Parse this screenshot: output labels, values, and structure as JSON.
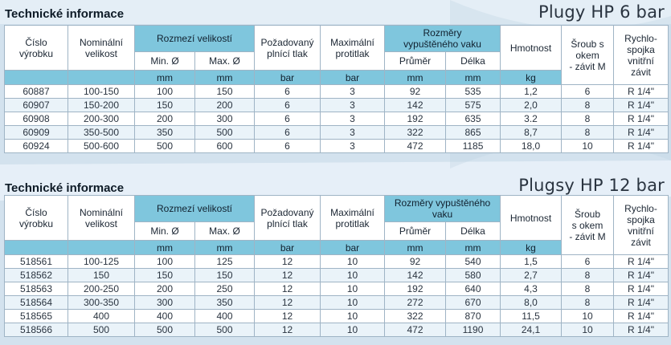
{
  "tables": [
    {
      "section_title": "Technické informace",
      "product_title": "Plugy HP 6 bar",
      "headers": {
        "cislo": "Číslo\nvýrobku",
        "nominal": "Nominální\nvelikost",
        "rozmezi": "Rozmezí velikostí",
        "min": "Min. Ø",
        "max": "Max. Ø",
        "pozadovany": "Požadovaný\nplnící tlak",
        "maximalni": "Maximální\nprotitlak",
        "rozmery": "Rozměry\nvypuštěného vaku",
        "prumer": "Průměr",
        "delka": "Délka",
        "hmotnost": "Hmotnost",
        "sroub": "Šroub s\nokem\n- závit M",
        "rychlo": "Rychlo-\nspojka\nvnitřní\nzávit"
      },
      "units": [
        "mm",
        "mm",
        "bar",
        "bar",
        "mm",
        "mm",
        "kg"
      ],
      "rows": [
        [
          "60887",
          "100-150",
          "100",
          "150",
          "6",
          "3",
          "92",
          "535",
          "1,2",
          "6",
          "R 1/4\""
        ],
        [
          "60907",
          "150-200",
          "150",
          "200",
          "6",
          "3",
          "142",
          "575",
          "2,0",
          "8",
          "R 1/4\""
        ],
        [
          "60908",
          "200-300",
          "200",
          "300",
          "6",
          "3",
          "192",
          "635",
          "3.2",
          "8",
          "R 1/4\""
        ],
        [
          "60909",
          "350-500",
          "350",
          "500",
          "6",
          "3",
          "322",
          "865",
          "8,7",
          "8",
          "R 1/4\""
        ],
        [
          "60924",
          "500-600",
          "500",
          "600",
          "6",
          "3",
          "472",
          "1185",
          "18,0",
          "10",
          "R 1/4\""
        ]
      ]
    },
    {
      "section_title": "Technické informace",
      "product_title": "Plugsy HP 12 bar",
      "headers": {
        "cislo": "Číslo\nvýrobku",
        "nominal": "Nominální\nvelikost",
        "rozmezi": "Rozmezí velikostí",
        "min": "Min. Ø",
        "max": "Max. Ø",
        "pozadovany": "Požadovaný\nplnící tlak",
        "maximalni": "Maximální\nprotitlak",
        "rozmery": "Rozměry vypuštěného vaku",
        "prumer": "Průměr",
        "delka": "Délka",
        "hmotnost": "Hmotnost",
        "sroub": "Šroub\ns okem\n- závit M",
        "rychlo": "Rychlo-\nspojka\nvnitřní\nzávit"
      },
      "units": [
        "mm",
        "mm",
        "bar",
        "bar",
        "mm",
        "mm",
        "kg"
      ],
      "rows": [
        [
          "518561",
          "100-125",
          "100",
          "125",
          "12",
          "10",
          "92",
          "540",
          "1,5",
          "6",
          "R 1/4\""
        ],
        [
          "518562",
          "150",
          "150",
          "150",
          "12",
          "10",
          "142",
          "580",
          "2,7",
          "8",
          "R 1/4\""
        ],
        [
          "518563",
          "200-250",
          "200",
          "250",
          "12",
          "10",
          "192",
          "640",
          "4,3",
          "8",
          "R 1/4\""
        ],
        [
          "518564",
          "300-350",
          "300",
          "350",
          "12",
          "10",
          "272",
          "670",
          "8,0",
          "8",
          "R 1/4\""
        ],
        [
          "518565",
          "400",
          "400",
          "400",
          "12",
          "10",
          "322",
          "870",
          "11,5",
          "10",
          "R 1/4\""
        ],
        [
          "518566",
          "500",
          "500",
          "500",
          "12",
          "10",
          "472",
          "1190",
          "24,1",
          "10",
          "R 1/4\""
        ]
      ]
    }
  ]
}
